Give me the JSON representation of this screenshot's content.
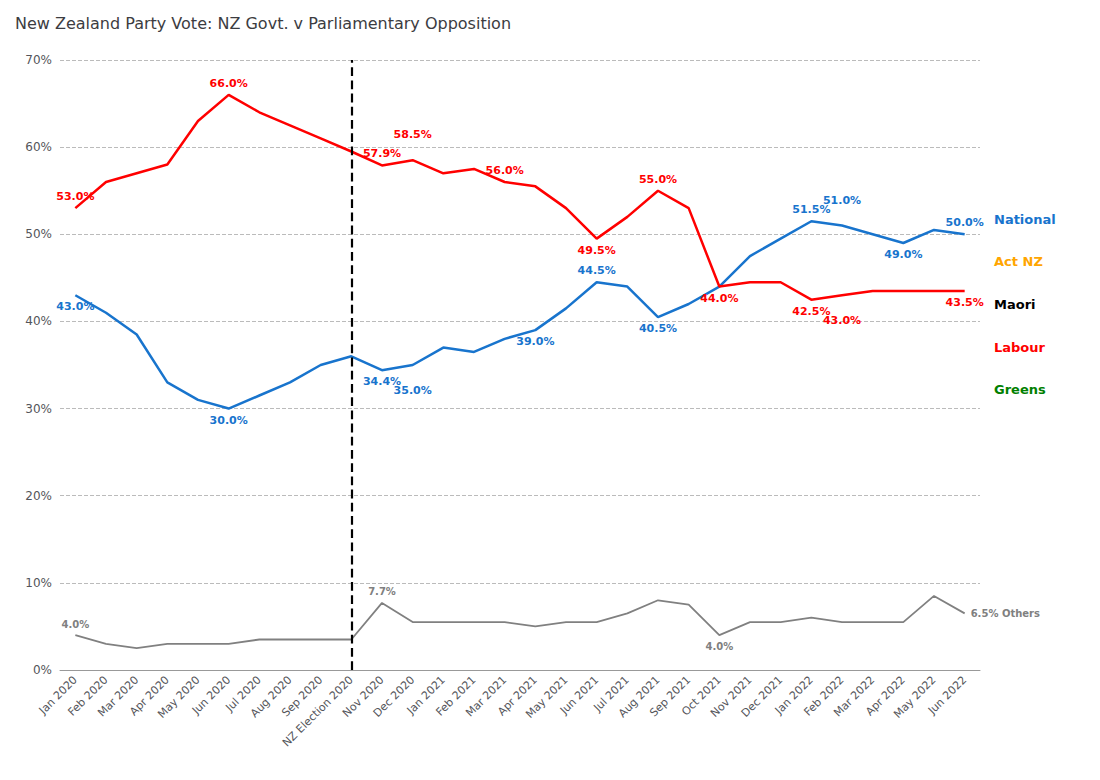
{
  "chart_data": {
    "type": "line",
    "title": "New Zealand Party Vote: NZ Govt. v Parliamentary Opposition",
    "categories": [
      "Jan 2020",
      "Feb 2020",
      "Mar 2020",
      "Apr 2020",
      "May 2020",
      "Jun 2020",
      "Jul 2020",
      "Aug 2020",
      "Sep 2020",
      "NZ Election 2020",
      "Nov 2020",
      "Dec 2020",
      "Jan 2021",
      "Feb 2021",
      "Mar 2021",
      "Apr 2021",
      "May 2021",
      "Jun 2021",
      "Jul 2021",
      "Aug 2021",
      "Sep 2021",
      "Oct 2021",
      "Nov 2021",
      "Dec 2021",
      "Jan 2022",
      "Feb 2022",
      "Mar 2022",
      "Apr 2022",
      "May 2022",
      "Jun 2022"
    ],
    "series": [
      {
        "name": "National",
        "color": "#1874CD",
        "values": [
          43.0,
          41.0,
          38.5,
          33.0,
          31.0,
          30.0,
          31.5,
          33.0,
          35.0,
          36.0,
          34.4,
          35.0,
          37.0,
          36.5,
          38.0,
          39.0,
          41.5,
          44.5,
          44.0,
          40.5,
          42.0,
          44.0,
          47.5,
          49.5,
          51.5,
          51.0,
          50.0,
          49.0,
          50.5,
          50.0
        ]
      },
      {
        "name": "Labour",
        "color": "#FF0000",
        "values": [
          53.0,
          56.0,
          57.0,
          58.0,
          63.0,
          66.0,
          64.0,
          62.5,
          61.0,
          59.5,
          57.9,
          58.5,
          57.0,
          57.5,
          56.0,
          55.5,
          53.0,
          49.5,
          52.0,
          55.0,
          53.0,
          44.0,
          44.5,
          44.5,
          42.5,
          43.0,
          43.5,
          43.5,
          43.5,
          43.5
        ]
      },
      {
        "name": "Others",
        "color": "#808080",
        "values": [
          4.0,
          3.0,
          2.5,
          3.0,
          3.0,
          3.0,
          3.5,
          3.5,
          3.5,
          3.5,
          7.7,
          5.5,
          5.5,
          5.5,
          5.5,
          5.0,
          5.5,
          5.5,
          6.5,
          8.0,
          7.5,
          4.0,
          5.5,
          5.5,
          6.0,
          5.5,
          5.5,
          5.5,
          8.5,
          6.5
        ]
      }
    ],
    "ylim": [
      0,
      70
    ],
    "yticks": [
      {
        "value": 0,
        "label": "0%"
      },
      {
        "value": 10,
        "label": "10%"
      },
      {
        "value": 20,
        "label": "20%"
      },
      {
        "value": 30,
        "label": "30%"
      },
      {
        "value": 40,
        "label": "40%"
      },
      {
        "value": 50,
        "label": "50%"
      },
      {
        "value": 60,
        "label": "60%"
      },
      {
        "value": 70,
        "label": "70%"
      }
    ],
    "grid": true,
    "vline": "NZ Election 2020",
    "annotations": [
      {
        "series": "Labour",
        "category": "Jan 2020",
        "value": 53.0,
        "text": "53.0%",
        "position": "above"
      },
      {
        "series": "Labour",
        "category": "Jun 2020",
        "value": 66.0,
        "text": "66.0%",
        "position": "above"
      },
      {
        "series": "Labour",
        "category": "Nov 2020",
        "value": 57.9,
        "text": "57.9%",
        "position": "above"
      },
      {
        "series": "Labour",
        "category": "Dec 2020",
        "value": 58.5,
        "text": "58.5%",
        "position": "above"
      },
      {
        "series": "Labour",
        "category": "Mar 2021",
        "value": 56.0,
        "text": "56.0%",
        "position": "above"
      },
      {
        "series": "Labour",
        "category": "Jun 2021",
        "value": 49.5,
        "text": "49.5%",
        "position": "below"
      },
      {
        "series": "Labour",
        "category": "Aug 2021",
        "value": 55.0,
        "text": "55.0%",
        "position": "above"
      },
      {
        "series": "Labour",
        "category": "Oct 2021",
        "value": 44.0,
        "text": "44.0%",
        "position": "below"
      },
      {
        "series": "Labour",
        "category": "Jan 2022",
        "value": 42.5,
        "text": "42.5%",
        "position": "below"
      },
      {
        "series": "Labour",
        "category": "Feb 2022",
        "value": 43.0,
        "text": "43.0%",
        "position": "below"
      },
      {
        "series": "Labour",
        "category": "Jun 2022",
        "value": 43.5,
        "text": "43.5%",
        "position": "below"
      },
      {
        "series": "National",
        "category": "Jan 2020",
        "value": 43.0,
        "text": "43.0%",
        "position": "below"
      },
      {
        "series": "National",
        "category": "Jun 2020",
        "value": 30.0,
        "text": "30.0%",
        "position": "below"
      },
      {
        "series": "National",
        "category": "Nov 2020",
        "value": 34.4,
        "text": "34.4%",
        "position": "below"
      },
      {
        "series": "National",
        "category": "Dec 2020",
        "value": 35.0,
        "text": "35.0%",
        "position": "below"
      },
      {
        "series": "National",
        "category": "Apr 2021",
        "value": 39.0,
        "text": "39.0%",
        "position": "below"
      },
      {
        "series": "National",
        "category": "Jun 2021",
        "value": 44.5,
        "text": "44.5%",
        "position": "above"
      },
      {
        "series": "National",
        "category": "Aug 2021",
        "value": 40.5,
        "text": "40.5%",
        "position": "below"
      },
      {
        "series": "National",
        "category": "Jan 2022",
        "value": 51.5,
        "text": "51.5%",
        "position": "above"
      },
      {
        "series": "National",
        "category": "Feb 2022",
        "value": 51.0,
        "text": "51.0%",
        "position": "above"
      },
      {
        "series": "National",
        "category": "Apr 2022",
        "value": 49.0,
        "text": "49.0%",
        "position": "below"
      },
      {
        "series": "National",
        "category": "Jun 2022",
        "value": 50.0,
        "text": "50.0%",
        "position": "above"
      },
      {
        "series": "Others",
        "category": "Jan 2020",
        "value": 4.0,
        "text": "4.0%",
        "position": "above"
      },
      {
        "series": "Others",
        "category": "Nov 2020",
        "value": 7.7,
        "text": "7.7%",
        "position": "above"
      },
      {
        "series": "Others",
        "category": "Oct 2021",
        "value": 4.0,
        "text": "4.0%",
        "position": "below"
      },
      {
        "series": "Others",
        "category": "Jun 2022",
        "value": 6.5,
        "text": "6.5% Others",
        "position": "right"
      },
      {
        "text": "National",
        "color": "#1874CD",
        "position": "right"
      },
      {
        "text": "Act NZ",
        "color": "#FFA500",
        "position": "right"
      },
      {
        "text": "Maori",
        "color": "#000000",
        "position": "right"
      },
      {
        "text": "Labour",
        "color": "#FF0000",
        "position": "right"
      },
      {
        "text": "Greens",
        "color": "#008000",
        "position": "right"
      }
    ]
  }
}
